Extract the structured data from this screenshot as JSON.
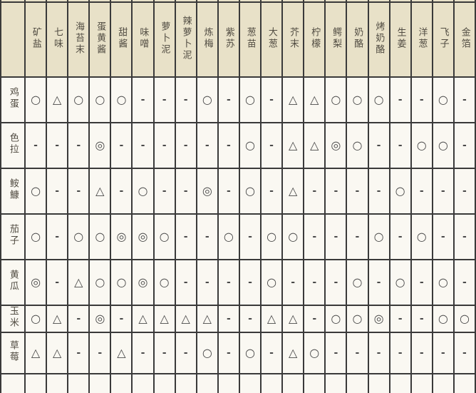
{
  "colors": {
    "header_bg": "#e8e1c8",
    "cell_bg": "#faf8f2",
    "border": "#3a3a3a",
    "text": "#514c42",
    "symbol": "#4a4a4a"
  },
  "table": {
    "corner_label": "",
    "columns": [
      "矿盐",
      "七味",
      "海苔末",
      "蛋黄酱",
      "甜酱",
      "味噌",
      "萝卜泥",
      "辣萝卜泥",
      "炼梅",
      "紫苏",
      "葱苗",
      "大葱",
      "芥末",
      "柠檬",
      "鳄梨",
      "奶酪",
      "烤奶酪",
      "生姜",
      "洋葱",
      "飞子",
      "金箔"
    ],
    "rows": [
      {
        "label": "鸡蛋",
        "values": [
          "○",
          "△",
          "○",
          "○",
          "○",
          "-",
          "-",
          "-",
          "○",
          "-",
          "○",
          "-",
          "△",
          "△",
          "○",
          "○",
          "○",
          "-",
          "-",
          "○",
          "-"
        ]
      },
      {
        "label": "色拉",
        "values": [
          "-",
          "-",
          "-",
          "◎",
          "-",
          "-",
          "-",
          "-",
          "-",
          "-",
          "○",
          "-",
          "△",
          "△",
          "◎",
          "○",
          "-",
          "-",
          "○",
          "○",
          "-"
        ]
      },
      {
        "label": "𩽾𩾌",
        "values": [
          "○",
          "-",
          "-",
          "△",
          "-",
          "○",
          "-",
          "-",
          "◎",
          "-",
          "○",
          "-",
          "△",
          "-",
          "-",
          "-",
          "-",
          "○",
          "-",
          "-",
          "-"
        ]
      },
      {
        "label": "茄子",
        "values": [
          "○",
          "-",
          "○",
          "○",
          "◎",
          "◎",
          "○",
          "-",
          "-",
          "○",
          "-",
          "○",
          "○",
          "-",
          "-",
          "-",
          "○",
          "-",
          "○",
          "-",
          "-"
        ]
      },
      {
        "label": "黄瓜",
        "values": [
          "◎",
          "-",
          "△",
          "○",
          "○",
          "◎",
          "○",
          "-",
          "-",
          "-",
          "-",
          "○",
          "-",
          "-",
          "-",
          "○",
          "-",
          "○",
          "-",
          "○",
          "-"
        ]
      },
      {
        "label": "玉米",
        "values": [
          "○",
          "△",
          "-",
          "◎",
          "-",
          "△",
          "△",
          "△",
          "△",
          "-",
          "-",
          "△",
          "△",
          "-",
          "○",
          "○",
          "◎",
          "-",
          "-",
          "○",
          "○"
        ]
      },
      {
        "label": "草莓",
        "values": [
          "△",
          "△",
          "-",
          "-",
          "△",
          "-",
          "-",
          "-",
          "○",
          "-",
          "○",
          "-",
          "△",
          "○",
          "-",
          "-",
          "-",
          "-",
          "-",
          "-",
          "-"
        ]
      }
    ]
  }
}
